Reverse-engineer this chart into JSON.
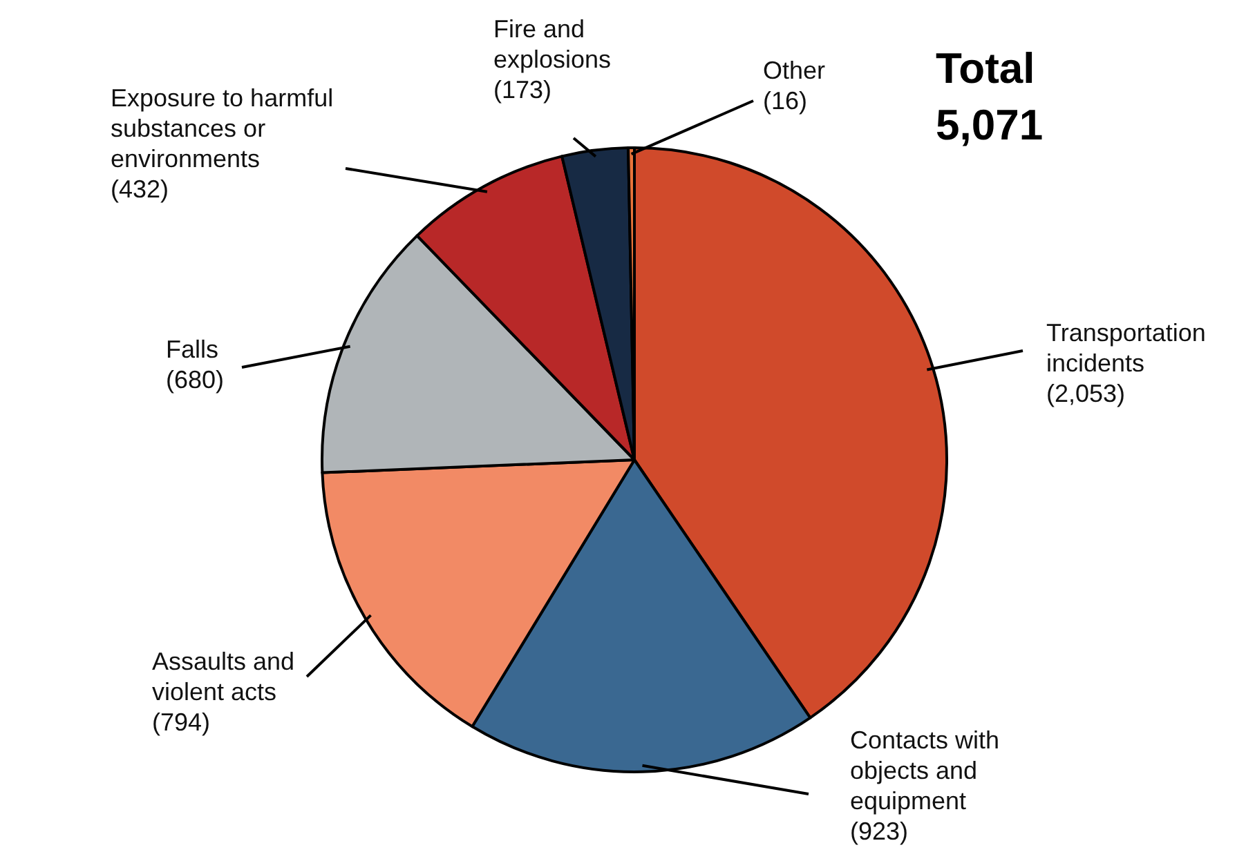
{
  "chart_data": {
    "type": "pie",
    "title": "Total",
    "subtitle": "5,071",
    "categories": [
      "Transportation incidents",
      "Contacts with objects and equipment",
      "Assaults and violent acts",
      "Falls",
      "Exposure to harmful substances or environments",
      "Fire and explosions",
      "Other"
    ],
    "values": [
      2053,
      923,
      794,
      680,
      432,
      173,
      16
    ],
    "value_labels": [
      "(2,053)",
      "(923)",
      "(794)",
      "(680)",
      "(432)",
      "(173)",
      "(16)"
    ],
    "colors": [
      "#d04a2b",
      "#3a6891",
      "#f28a65",
      "#b0b5b8",
      "#b82828",
      "#172a44",
      "#e8743b"
    ]
  }
}
